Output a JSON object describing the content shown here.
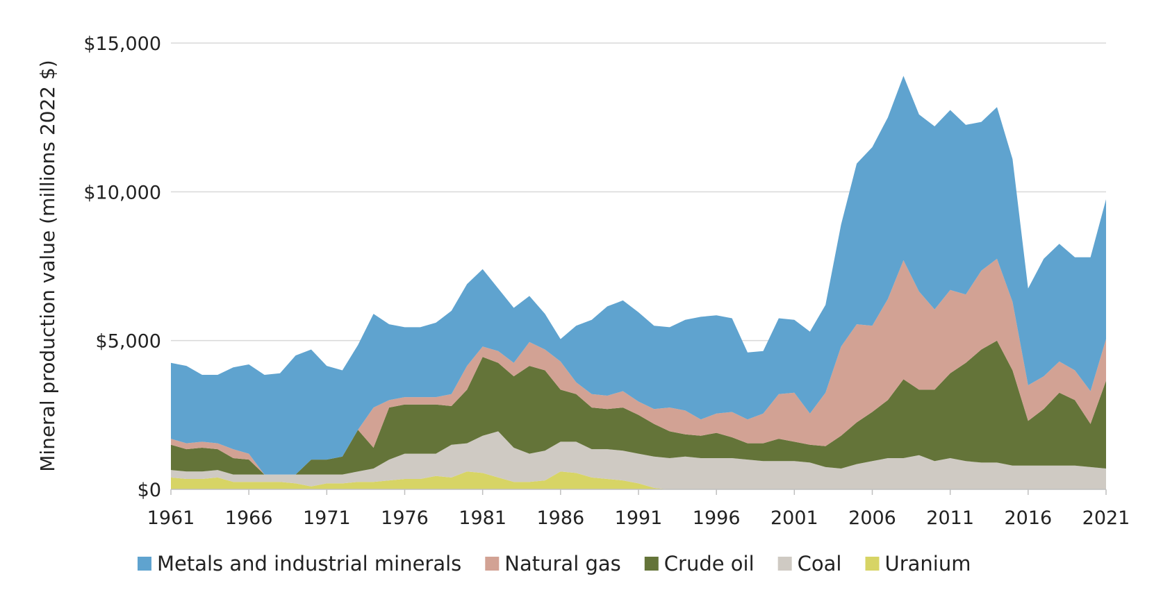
{
  "chart_data": {
    "type": "area",
    "stacked": true,
    "title": "",
    "xlabel": "",
    "ylabel": "Mineral production value (millions 2022 $)",
    "ylim": [
      0,
      15000
    ],
    "yticks": [
      0,
      5000,
      10000,
      15000
    ],
    "ytick_labels": [
      "$0",
      "$5,000",
      "$10,000",
      "$15,000"
    ],
    "xticks": [
      1961,
      1966,
      1971,
      1976,
      1981,
      1986,
      1991,
      1996,
      2001,
      2006,
      2011,
      2016,
      2021
    ],
    "xtick_labels": [
      "1961",
      "1966",
      "1971",
      "1976",
      "1981",
      "1986",
      "1991",
      "1996",
      "2001",
      "2006",
      "2011",
      "2016",
      "2021"
    ],
    "grid": "horizontal",
    "legend_position": "bottom",
    "x": [
      1961,
      1962,
      1963,
      1964,
      1965,
      1966,
      1967,
      1968,
      1969,
      1970,
      1971,
      1972,
      1973,
      1974,
      1975,
      1976,
      1977,
      1978,
      1979,
      1980,
      1981,
      1982,
      1983,
      1984,
      1985,
      1986,
      1987,
      1988,
      1989,
      1990,
      1991,
      1992,
      1993,
      1994,
      1995,
      1996,
      1997,
      1998,
      1999,
      2000,
      2001,
      2002,
      2003,
      2004,
      2005,
      2006,
      2007,
      2008,
      2009,
      2010,
      2011,
      2012,
      2013,
      2014,
      2015,
      2016,
      2017,
      2018,
      2019,
      2020,
      2021
    ],
    "series": [
      {
        "name": "Uranium",
        "color": "#d7d465",
        "values": [
          400,
          350,
          350,
          400,
          250,
          250,
          250,
          250,
          200,
          100,
          200,
          200,
          250,
          250,
          300,
          350,
          350,
          450,
          400,
          600,
          550,
          400,
          250,
          250,
          300,
          600,
          550,
          400,
          350,
          300,
          200,
          50,
          0,
          0,
          0,
          0,
          0,
          0,
          0,
          0,
          0,
          0,
          0,
          0,
          0,
          0,
          0,
          0,
          0,
          0,
          0,
          0,
          0,
          0,
          0,
          0,
          0,
          0,
          0,
          0,
          0
        ]
      },
      {
        "name": "Coal",
        "color": "#cfcac3",
        "values": [
          250,
          250,
          250,
          250,
          250,
          250,
          250,
          250,
          300,
          400,
          300,
          300,
          350,
          450,
          700,
          850,
          850,
          750,
          1100,
          950,
          1250,
          1550,
          1150,
          950,
          1000,
          1000,
          1050,
          950,
          1000,
          1000,
          1000,
          1050,
          1050,
          1100,
          1050,
          1050,
          1050,
          1000,
          950,
          950,
          950,
          900,
          750,
          700,
          850,
          950,
          1050,
          1050,
          1150,
          950,
          1050,
          950,
          900,
          900,
          800,
          800,
          800,
          800,
          800,
          750,
          700
        ]
      },
      {
        "name": "Crude oil",
        "color": "#647439",
        "values": [
          850,
          750,
          800,
          700,
          550,
          500,
          0,
          0,
          0,
          500,
          500,
          600,
          1400,
          700,
          1750,
          1650,
          1650,
          1650,
          1300,
          1800,
          2650,
          2300,
          2400,
          2950,
          2700,
          1750,
          1600,
          1400,
          1350,
          1450,
          1300,
          1100,
          900,
          750,
          750,
          850,
          700,
          550,
          600,
          750,
          650,
          600,
          700,
          1100,
          1400,
          1650,
          1950,
          2650,
          2200,
          2400,
          2850,
          3300,
          3800,
          4100,
          3200,
          1500,
          1900,
          2450,
          2200,
          1450,
          2950
        ]
      },
      {
        "name": "Natural gas",
        "color": "#d2a294",
        "values": [
          200,
          200,
          200,
          200,
          300,
          200,
          0,
          0,
          0,
          0,
          0,
          0,
          0,
          1350,
          250,
          250,
          250,
          250,
          400,
          800,
          350,
          400,
          450,
          800,
          700,
          950,
          400,
          450,
          450,
          550,
          450,
          500,
          800,
          800,
          550,
          650,
          850,
          800,
          1000,
          1500,
          1650,
          1050,
          1800,
          3000,
          3300,
          2900,
          3400,
          4000,
          3300,
          2700,
          2800,
          2300,
          2650,
          2750,
          2300,
          1200,
          1100,
          1050,
          1000,
          1100,
          1400
        ]
      },
      {
        "name": "Metals and industrial minerals",
        "color": "#5fa3cf",
        "values": [
          2550,
          2600,
          2250,
          2300,
          2750,
          3000,
          3350,
          3400,
          4000,
          3700,
          3150,
          2900,
          2850,
          3150,
          2550,
          2350,
          2350,
          2500,
          2800,
          2750,
          2600,
          2100,
          1850,
          1550,
          1200,
          750,
          1900,
          2500,
          3000,
          3050,
          3000,
          2800,
          2700,
          3050,
          3450,
          3300,
          3150,
          2250,
          2100,
          2550,
          2450,
          2750,
          2950,
          4100,
          5400,
          6000,
          6100,
          6200,
          5950,
          6150,
          6050,
          5700,
          5000,
          5100,
          4800,
          3250,
          3950,
          3950,
          3800,
          4500,
          4700
        ]
      }
    ]
  }
}
